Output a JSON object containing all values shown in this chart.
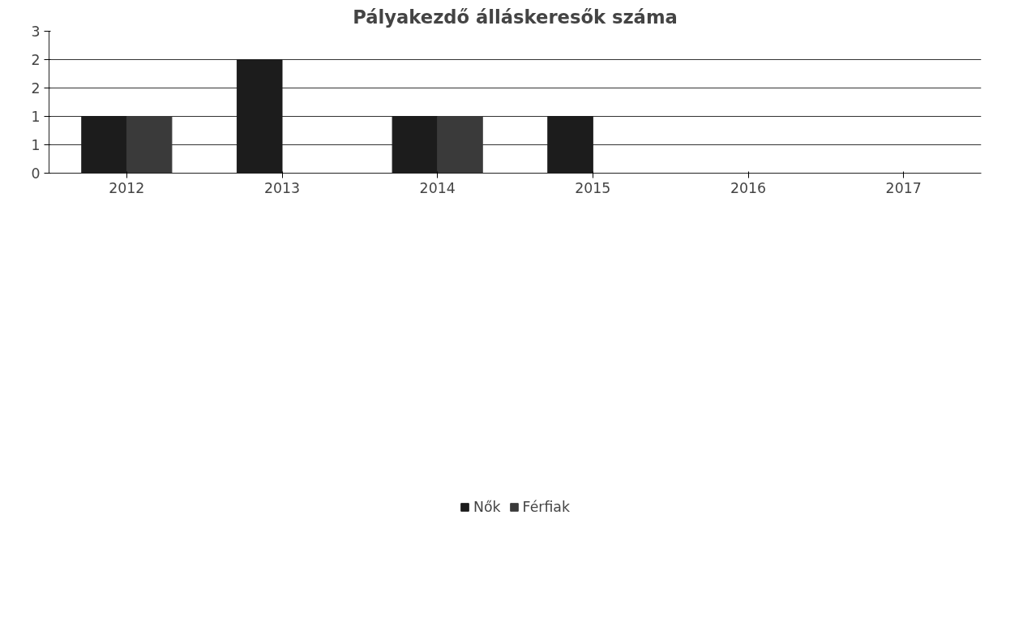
{
  "chart_data": {
    "type": "bar",
    "title": "Pályakezdő álláskeresők száma",
    "categories": [
      "2012",
      "2013",
      "2014",
      "2015",
      "2016",
      "2017"
    ],
    "series": [
      {
        "name": "Nők",
        "color": "#1c1c1c",
        "values": [
          1,
          2,
          1,
          1,
          0,
          0
        ]
      },
      {
        "name": "Férfiak",
        "color": "#3a3a3a",
        "values": [
          1,
          0,
          1,
          0,
          0,
          0
        ]
      }
    ],
    "ylim": [
      0,
      2.5
    ],
    "yticks": [
      0,
      {
        "value": 0.5,
        "label": "1"
      },
      1,
      {
        "value": 1.5,
        "label": "2"
      },
      2,
      {
        "value": 2.5,
        "label": "3"
      }
    ],
    "grid": "y",
    "legend": "bottom"
  }
}
